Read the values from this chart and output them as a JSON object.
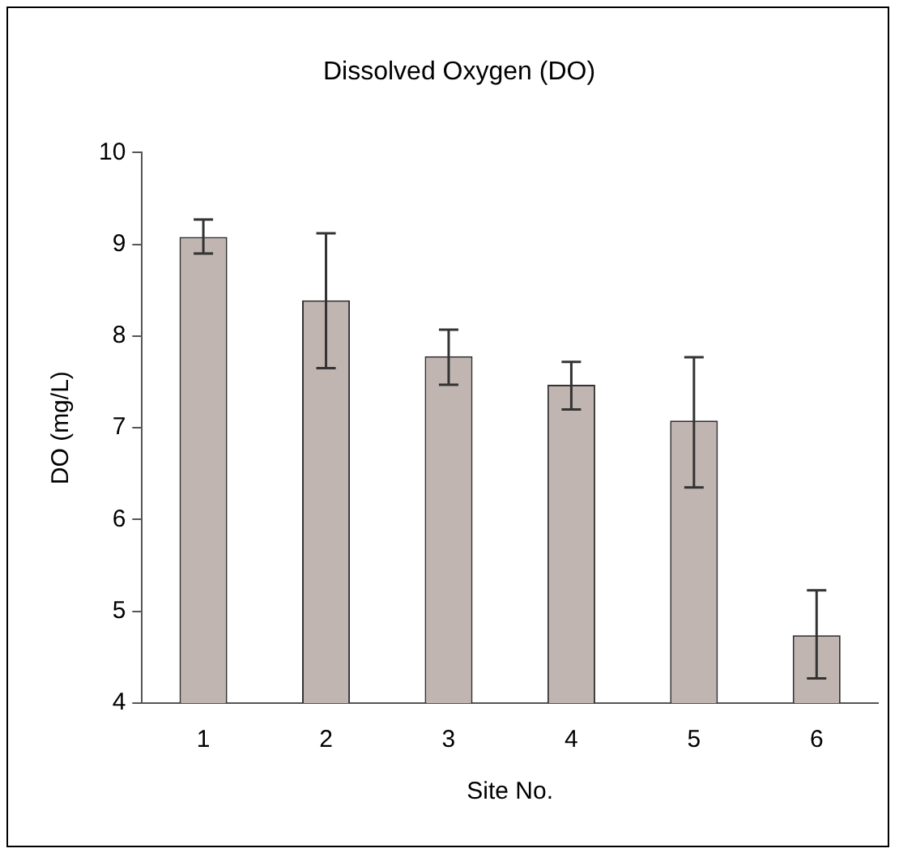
{
  "chart_data": {
    "type": "bar",
    "title": "Dissolved Oxygen (DO)",
    "xlabel": "Site No.",
    "ylabel": "DO (mg/L)",
    "categories": [
      "1",
      "2",
      "3",
      "4",
      "5",
      "6"
    ],
    "values": [
      9.08,
      8.39,
      7.78,
      7.47,
      7.08,
      4.74
    ],
    "errors": [
      [
        8.9,
        9.27
      ],
      [
        7.65,
        9.12
      ],
      [
        7.47,
        8.07
      ],
      [
        7.2,
        7.72
      ],
      [
        6.35,
        7.77
      ],
      [
        4.27,
        5.23
      ]
    ],
    "color": "#c0b5b1",
    "ylim": [
      4,
      10
    ],
    "yticks": [
      4,
      5,
      6,
      7,
      8,
      9,
      10
    ],
    "grid": false,
    "legend": false
  }
}
